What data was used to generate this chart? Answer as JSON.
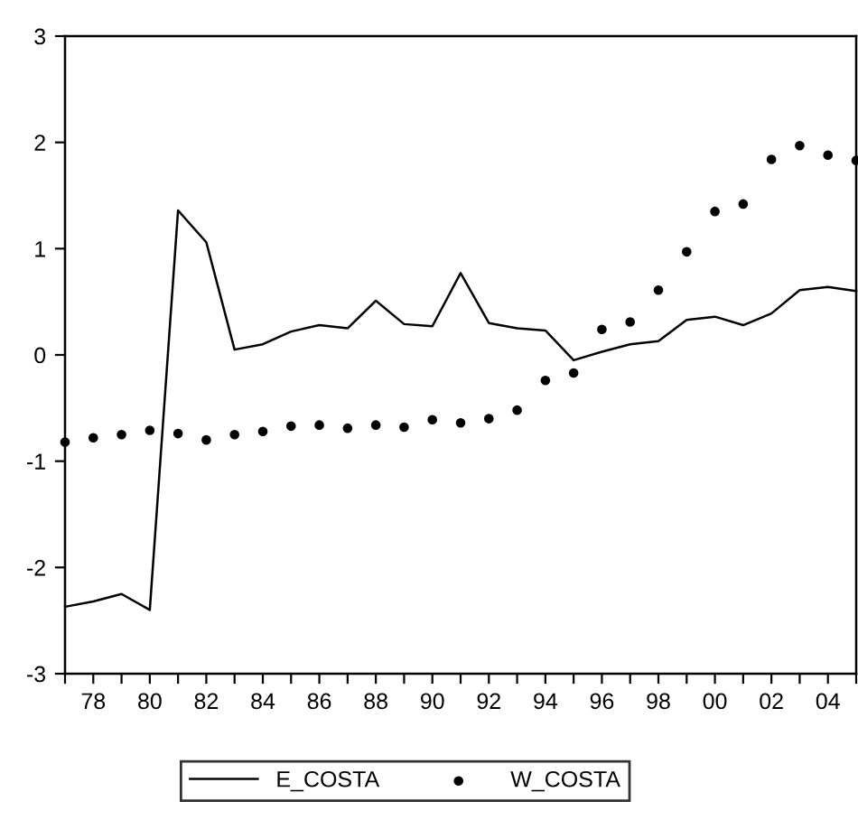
{
  "chart_data": {
    "type": "line",
    "x": [
      1977,
      1978,
      1979,
      1980,
      1981,
      1982,
      1983,
      1984,
      1985,
      1986,
      1987,
      1988,
      1989,
      1990,
      1991,
      1992,
      1993,
      1994,
      1995,
      1996,
      1997,
      1998,
      1999,
      2000,
      2001,
      2002,
      2003,
      2004,
      2005
    ],
    "series": [
      {
        "name": "E_COSTA",
        "color": "#000000",
        "marker": "none",
        "line_style": "solid",
        "values": [
          -2.37,
          -2.32,
          -2.25,
          -2.4,
          1.36,
          1.06,
          0.05,
          0.1,
          0.22,
          0.28,
          0.25,
          0.51,
          0.29,
          0.27,
          0.77,
          0.3,
          0.25,
          0.23,
          -0.05,
          0.03,
          0.1,
          0.13,
          0.33,
          0.36,
          0.28,
          0.39,
          0.61,
          0.64,
          0.6
        ]
      },
      {
        "name": "W_COSTA",
        "type": "scatter",
        "color": "#000000",
        "marker": "circle",
        "values": [
          -0.82,
          -0.78,
          -0.75,
          -0.71,
          -0.74,
          -0.8,
          -0.75,
          -0.72,
          -0.67,
          -0.66,
          -0.69,
          -0.66,
          -0.68,
          -0.61,
          -0.64,
          -0.6,
          -0.52,
          -0.24,
          -0.17,
          0.24,
          0.31,
          0.61,
          0.97,
          1.35,
          1.42,
          1.84,
          1.97,
          1.88,
          1.83
        ]
      }
    ],
    "xlim": [
      1977,
      2005
    ],
    "xticks": [
      {
        "value": 1977,
        "label": null
      },
      {
        "value": 1978,
        "label": "78"
      },
      {
        "value": 1979,
        "label": null
      },
      {
        "value": 1980,
        "label": "80"
      },
      {
        "value": 1981,
        "label": null
      },
      {
        "value": 1982,
        "label": "82"
      },
      {
        "value": 1983,
        "label": null
      },
      {
        "value": 1984,
        "label": "84"
      },
      {
        "value": 1985,
        "label": null
      },
      {
        "value": 1986,
        "label": "86"
      },
      {
        "value": 1987,
        "label": null
      },
      {
        "value": 1988,
        "label": "88"
      },
      {
        "value": 1989,
        "label": null
      },
      {
        "value": 1990,
        "label": "90"
      },
      {
        "value": 1991,
        "label": null
      },
      {
        "value": 1992,
        "label": "92"
      },
      {
        "value": 1993,
        "label": null
      },
      {
        "value": 1994,
        "label": "94"
      },
      {
        "value": 1995,
        "label": null
      },
      {
        "value": 1996,
        "label": "96"
      },
      {
        "value": 1997,
        "label": null
      },
      {
        "value": 1998,
        "label": "98"
      },
      {
        "value": 1999,
        "label": null
      },
      {
        "value": 2000,
        "label": "00"
      },
      {
        "value": 2001,
        "label": null
      },
      {
        "value": 2002,
        "label": "02"
      },
      {
        "value": 2003,
        "label": null
      },
      {
        "value": 2004,
        "label": "04"
      },
      {
        "value": 2005,
        "label": null
      }
    ],
    "ylim": [
      -3,
      3
    ],
    "yticks": [
      -3,
      -2,
      -1,
      0,
      1,
      2,
      3
    ],
    "grid": false,
    "legend": "bottom"
  }
}
